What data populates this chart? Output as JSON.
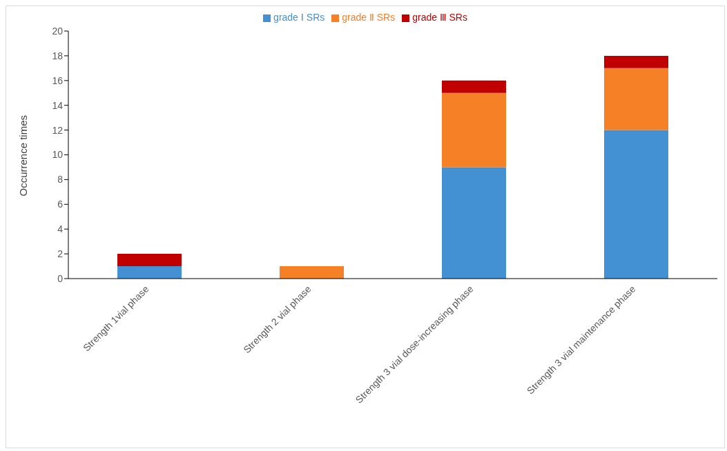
{
  "chart_data": {
    "type": "bar",
    "stacked": true,
    "ylabel": "Occurrence times",
    "categories": [
      "Strength 1vial phase",
      "Strength 2 vial phase",
      "Strength 3 vial dose-increasing phase",
      "Strength 3 vial maintenance phase"
    ],
    "series": [
      {
        "name": "grade Ⅰ SRs",
        "color": "#4390d2",
        "values": [
          1,
          0,
          9,
          12
        ]
      },
      {
        "name": "grade Ⅱ SRs",
        "color": "#f58025",
        "values": [
          0,
          1,
          6,
          5
        ]
      },
      {
        "name": "grade Ⅲ SRs",
        "color": "#c00000",
        "values": [
          1,
          0,
          1,
          1
        ]
      }
    ],
    "ylim": [
      0,
      20
    ],
    "yticks": [
      0,
      2,
      4,
      6,
      8,
      10,
      12,
      14,
      16,
      18,
      20
    ],
    "grid": false,
    "legend": "top"
  }
}
